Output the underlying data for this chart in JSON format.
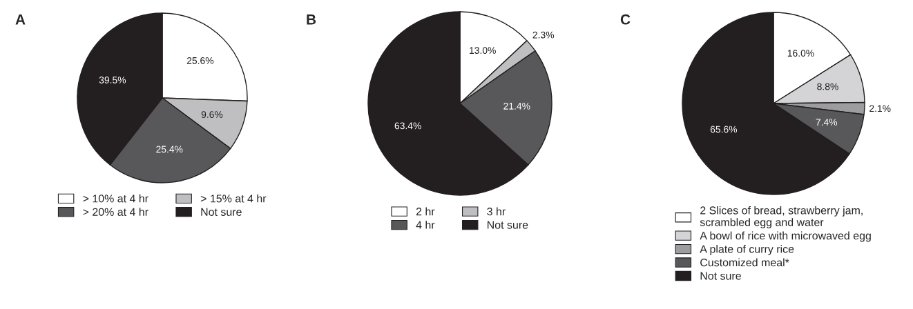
{
  "chart_data": [
    {
      "type": "pie",
      "title": "A",
      "categories": [
        "> 10% at 4 hr",
        "> 15% at 4 hr",
        "> 20% at 4 hr",
        "Not sure"
      ],
      "values": [
        25.6,
        9.6,
        25.4,
        39.5
      ],
      "colors": [
        "#ffffff",
        "#bfbfc1",
        "#58585a",
        "#231f20"
      ],
      "value_labels": [
        "25.6%",
        "9.6%",
        "25.4%",
        "39.5%"
      ],
      "legend": "bottom"
    },
    {
      "type": "pie",
      "title": "B",
      "categories": [
        "2 hr",
        "3 hr",
        "4 hr",
        "Not sure"
      ],
      "values": [
        13.0,
        2.3,
        21.4,
        63.4
      ],
      "colors": [
        "#ffffff",
        "#bfbfc1",
        "#58585a",
        "#231f20"
      ],
      "value_labels": [
        "13.0%",
        "2.3%",
        "21.4%",
        "63.4%"
      ],
      "legend": "bottom"
    },
    {
      "type": "pie",
      "title": "C",
      "categories": [
        "2 Slices of bread, strawberry jam,\nscrambled egg and water",
        "A bowl of rice with microwaved egg",
        "A plate of curry rice",
        "Customized meal*",
        "Not sure"
      ],
      "values": [
        16.0,
        8.8,
        2.1,
        7.4,
        65.6
      ],
      "colors": [
        "#ffffff",
        "#d4d4d6",
        "#9d9d9f",
        "#58585a",
        "#231f20"
      ],
      "value_labels": [
        "16.0%",
        "8.8%",
        "2.1%",
        "7.4%",
        "65.6%"
      ],
      "legend": "bottom"
    }
  ]
}
